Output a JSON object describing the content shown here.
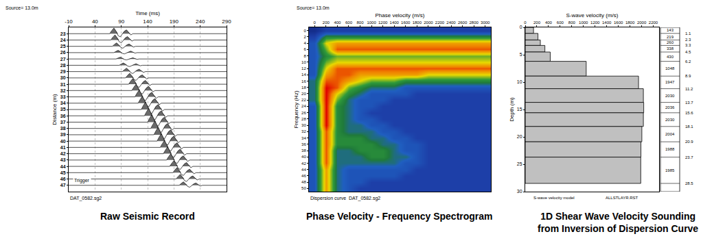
{
  "chart_data": [
    {
      "type": "wiggle",
      "caption": "Raw Seismic Record",
      "source_label": "Source= 13.0m",
      "footnote": "DAT_0582.sg2",
      "annotation": "Trigger",
      "xlabel": "Time (ms)",
      "ylabel": "Distance (m)",
      "xlim": [
        -10,
        290
      ],
      "xticks": [
        -10,
        40,
        90,
        140,
        190,
        240,
        290
      ],
      "ylim": [
        48,
        22
      ],
      "yticks": [
        23,
        24,
        25,
        26,
        27,
        28,
        29,
        30,
        31,
        32,
        33,
        34,
        35,
        36,
        37,
        38,
        39,
        40,
        41,
        42,
        43,
        44,
        45,
        46,
        47
      ],
      "grid": true,
      "color": "#000000",
      "wavelet": {
        "offset_ms": [
          0,
          4,
          8,
          12,
          16,
          20,
          24,
          28,
          32,
          36,
          40,
          44
        ],
        "amplitude": [
          0,
          0.5,
          0.9,
          0.4,
          -0.3,
          -0.5,
          -0.1,
          0.4,
          0.6,
          0.2,
          -0.2,
          0
        ]
      },
      "traces": [
        {
          "distance": 23,
          "arrival_ms": 68,
          "amplitude": 1.0
        },
        {
          "distance": 24,
          "arrival_ms": 70,
          "amplitude": 0.9
        },
        {
          "distance": 25,
          "arrival_ms": 73,
          "amplitude": 0.6
        },
        {
          "distance": 26,
          "arrival_ms": 76,
          "amplitude": 0.4
        },
        {
          "distance": 27,
          "arrival_ms": 80,
          "amplitude": 0.3
        },
        {
          "distance": 28,
          "arrival_ms": 86,
          "amplitude": 0.4
        },
        {
          "distance": 29,
          "arrival_ms": 92,
          "amplitude": 0.6
        },
        {
          "distance": 30,
          "arrival_ms": 98,
          "amplitude": 0.8
        },
        {
          "distance": 31,
          "arrival_ms": 104,
          "amplitude": 1.0
        },
        {
          "distance": 32,
          "arrival_ms": 110,
          "amplitude": 1.1
        },
        {
          "distance": 33,
          "arrival_ms": 116,
          "amplitude": 1.2
        },
        {
          "distance": 34,
          "arrival_ms": 122,
          "amplitude": 1.2
        },
        {
          "distance": 35,
          "arrival_ms": 128,
          "amplitude": 1.3
        },
        {
          "distance": 36,
          "arrival_ms": 134,
          "amplitude": 1.3
        },
        {
          "distance": 37,
          "arrival_ms": 140,
          "amplitude": 1.3
        },
        {
          "distance": 38,
          "arrival_ms": 146,
          "amplitude": 1.3
        },
        {
          "distance": 39,
          "arrival_ms": 152,
          "amplitude": 1.3
        },
        {
          "distance": 40,
          "arrival_ms": 158,
          "amplitude": 1.3
        },
        {
          "distance": 41,
          "arrival_ms": 164,
          "amplitude": 1.2
        },
        {
          "distance": 42,
          "arrival_ms": 170,
          "amplitude": 1.2
        },
        {
          "distance": 43,
          "arrival_ms": 176,
          "amplitude": 1.1
        },
        {
          "distance": 44,
          "arrival_ms": 182,
          "amplitude": 1.0
        },
        {
          "distance": 45,
          "arrival_ms": 188,
          "amplitude": 0.9
        },
        {
          "distance": 46,
          "arrival_ms": 194,
          "amplitude": 0.8
        },
        {
          "distance": 47,
          "arrival_ms": 200,
          "amplitude": 0.6
        }
      ]
    },
    {
      "type": "heatmap",
      "caption": "Phase Velocity - Frequency Spectrogram",
      "source_label": "Source= 13.0m",
      "footnote": "Dispersion curve  DAT_0582.sg2",
      "xlabel": "Phase velocity (m/s)",
      "ylabel": "Frequency (Hz)",
      "xlim": [
        -100,
        3100
      ],
      "xticks": [
        0,
        200,
        400,
        600,
        800,
        1000,
        1200,
        1400,
        1600,
        1800,
        2000,
        2200,
        2400,
        2600,
        2800,
        3000
      ],
      "ylim": [
        51,
        -1
      ],
      "yticks": [
        0,
        2,
        4,
        6,
        8,
        10,
        12,
        14,
        16,
        18,
        20,
        22,
        24,
        26,
        28,
        30,
        32,
        34,
        36,
        38,
        40,
        42,
        44,
        46,
        48,
        50
      ],
      "grid": false,
      "x": [
        0,
        200,
        400,
        600,
        800,
        1000,
        1200,
        1400,
        1600,
        1800,
        2000,
        2200,
        2400,
        2600,
        2800,
        3000
      ],
      "y": [
        0,
        2,
        4,
        6,
        8,
        10,
        12,
        14,
        16,
        18,
        20,
        22,
        24,
        26,
        28,
        30,
        32,
        34,
        36,
        38,
        40,
        42,
        44,
        46,
        48,
        50
      ],
      "zlim": [
        0,
        10
      ],
      "z": [
        [
          1,
          2,
          2,
          2,
          2,
          2,
          2,
          2,
          2,
          2,
          2,
          2,
          2,
          2,
          2,
          2
        ],
        [
          2,
          5,
          5,
          5,
          5,
          5,
          5,
          5,
          5,
          5,
          5,
          5,
          5,
          5,
          5,
          5
        ],
        [
          3,
          7,
          8,
          8,
          8,
          8,
          8,
          8,
          8,
          8,
          8,
          8,
          8,
          8,
          8,
          8
        ],
        [
          3,
          6,
          9,
          9,
          9,
          9,
          9,
          9,
          9,
          9,
          9,
          9,
          9,
          9,
          9,
          9
        ],
        [
          3,
          5,
          6,
          6,
          6,
          6,
          6,
          6,
          6,
          6,
          6,
          6,
          6,
          6,
          6,
          6
        ],
        [
          3,
          6,
          7,
          7,
          7,
          7,
          7,
          7,
          7,
          7,
          7,
          7,
          7,
          7,
          7,
          7
        ],
        [
          3,
          7,
          9,
          9,
          9,
          9,
          9,
          9,
          9,
          9,
          9,
          9,
          9,
          9,
          9,
          9
        ],
        [
          3,
          8,
          9,
          9,
          8,
          8,
          8,
          8,
          8,
          8,
          7,
          7,
          7,
          7,
          7,
          7
        ],
        [
          4,
          9,
          9,
          8,
          7,
          6,
          6,
          6,
          5,
          5,
          5,
          5,
          5,
          5,
          5,
          5
        ],
        [
          4,
          10,
          9,
          6,
          5,
          4,
          4,
          4,
          3,
          3,
          3,
          3,
          3,
          3,
          3,
          3
        ],
        [
          4,
          10,
          7,
          5,
          4,
          3,
          3,
          3,
          3,
          2,
          2,
          2,
          2,
          2,
          2,
          2
        ],
        [
          4,
          10,
          6,
          4,
          3,
          3,
          3,
          2,
          2,
          2,
          2,
          2,
          2,
          2,
          2,
          2
        ],
        [
          3,
          10,
          5,
          4,
          3,
          3,
          2,
          2,
          2,
          2,
          2,
          2,
          2,
          2,
          2,
          2
        ],
        [
          3,
          10,
          5,
          4,
          3,
          2,
          2,
          2,
          2,
          2,
          2,
          2,
          2,
          2,
          2,
          2
        ],
        [
          3,
          10,
          5,
          4,
          3,
          3,
          2,
          2,
          2,
          2,
          2,
          2,
          2,
          2,
          2,
          2
        ],
        [
          3,
          10,
          5,
          4,
          4,
          3,
          3,
          2,
          2,
          2,
          2,
          2,
          2,
          2,
          2,
          2
        ],
        [
          3,
          9,
          5,
          4,
          4,
          4,
          3,
          3,
          2,
          2,
          2,
          2,
          2,
          2,
          2,
          2
        ],
        [
          3,
          9,
          5,
          5,
          5,
          4,
          4,
          3,
          3,
          2,
          2,
          2,
          2,
          2,
          2,
          2
        ],
        [
          3,
          9,
          5,
          5,
          5,
          5,
          4,
          4,
          3,
          3,
          2,
          2,
          2,
          2,
          2,
          2
        ],
        [
          3,
          9,
          4,
          4,
          5,
          5,
          5,
          4,
          3,
          3,
          2,
          2,
          2,
          2,
          2,
          2
        ],
        [
          3,
          9,
          4,
          4,
          4,
          5,
          5,
          4,
          4,
          3,
          2,
          2,
          2,
          2,
          2,
          2
        ],
        [
          3,
          9,
          4,
          4,
          4,
          4,
          4,
          4,
          3,
          3,
          2,
          2,
          2,
          2,
          2,
          2
        ],
        [
          3,
          8,
          4,
          3,
          3,
          3,
          3,
          3,
          3,
          2,
          2,
          2,
          2,
          2,
          2,
          2
        ],
        [
          3,
          8,
          4,
          3,
          3,
          3,
          3,
          3,
          2,
          2,
          2,
          2,
          2,
          2,
          2,
          2
        ],
        [
          3,
          8,
          4,
          3,
          3,
          2,
          2,
          2,
          2,
          2,
          2,
          2,
          2,
          2,
          2,
          2
        ],
        [
          3,
          8,
          4,
          3,
          2,
          2,
          2,
          2,
          2,
          2,
          2,
          2,
          2,
          2,
          2,
          2
        ]
      ]
    },
    {
      "type": "bar",
      "orientation": "horizontal",
      "caption": "1D Shear Wave Velocity Sounding from Inversion of Dispersion Curve",
      "footnote": "S-wave velocity model",
      "file_label": "ALLSTLAYR.RST",
      "xlabel": "S-wave velocity (m/s)",
      "ylabel": "Depth (m)",
      "xlim": [
        0,
        2300
      ],
      "xticks": [
        0,
        200,
        400,
        600,
        800,
        1000,
        1200,
        1400,
        1600,
        1800,
        2000,
        2200
      ],
      "ylim": [
        30,
        0
      ],
      "yticks": [
        0,
        5,
        10,
        15,
        20,
        25,
        30
      ],
      "grid": false,
      "color": "#c0c0c0",
      "data_labels": true,
      "values": [
        143,
        219,
        260,
        338,
        430,
        1048,
        1947,
        2030,
        2036,
        2030,
        2004,
        1988,
        1985
      ],
      "depths": [
        1.1,
        2.3,
        3.3,
        4.5,
        6.2,
        8.9,
        11.2,
        13.7,
        15.6,
        18.1,
        20.9,
        23.7,
        28.5
      ]
    }
  ]
}
